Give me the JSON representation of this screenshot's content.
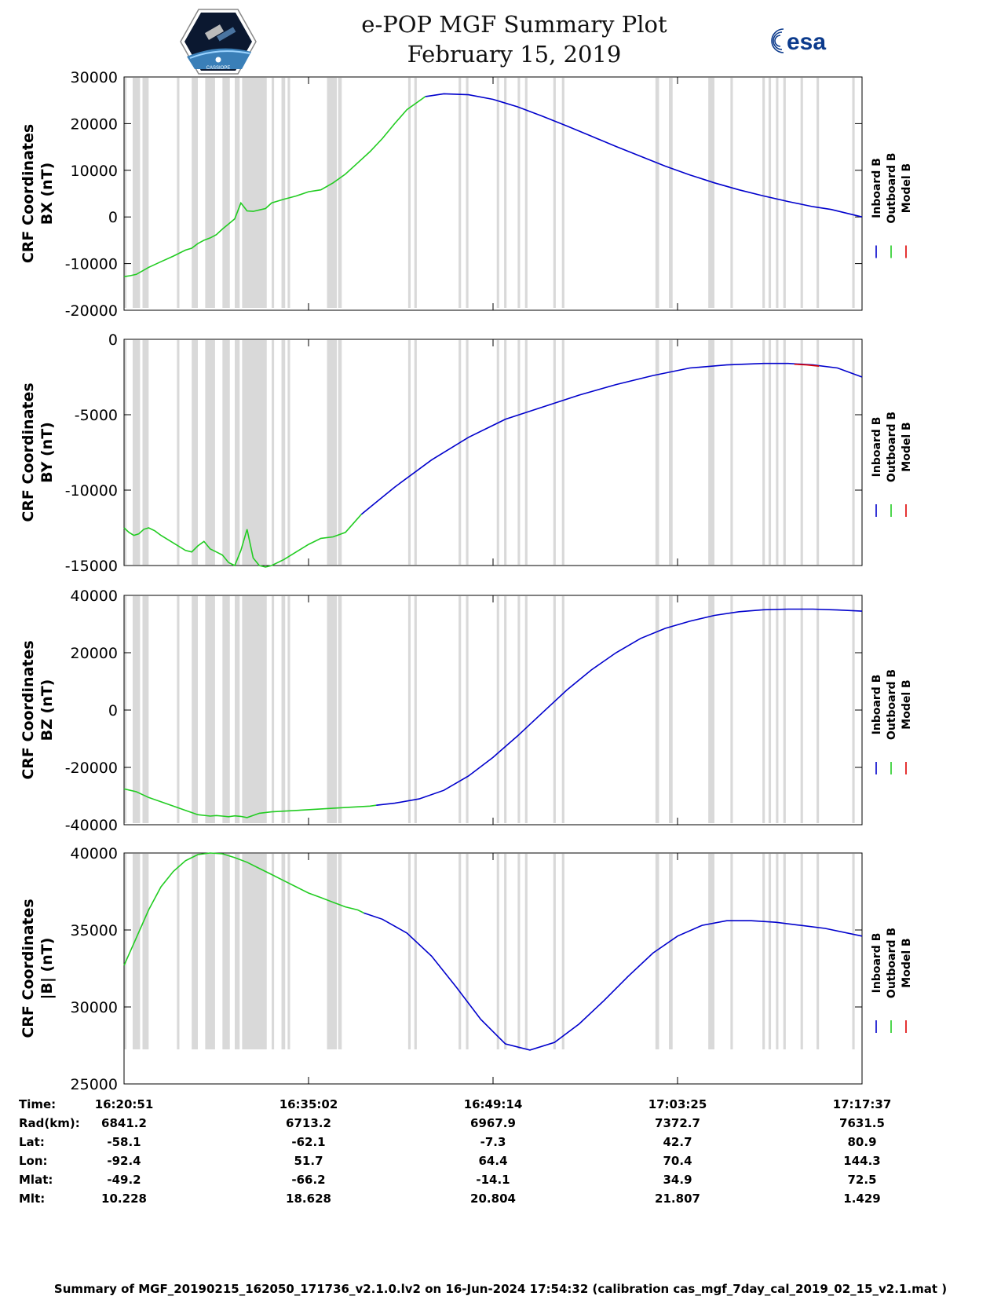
{
  "header": {
    "title": "e-POP MGF Summary Plot",
    "date": "February 15, 2019",
    "left_logo": "cassiope-satellite-logo",
    "left_logo_caption": "CASSIOPE",
    "right_logo": "esa-logo",
    "right_logo_text": "esa"
  },
  "legend": {
    "inboard": "Inboard B",
    "outboard": "Outboard B",
    "model": "Model B"
  },
  "colors": {
    "inboard": "#0000cc",
    "outboard": "#22cc22",
    "model": "#dd0000",
    "gap": "#d9d9d9",
    "axis": "#000000"
  },
  "chart_data": [
    {
      "type": "line",
      "ylabel_line1": "CRF Coordinates",
      "ylabel_line2": "BX (nT)",
      "ylim": [
        -20000,
        30000
      ],
      "yticks": [
        -20000,
        -10000,
        0,
        10000,
        20000,
        30000
      ],
      "ytick_labels": [
        "-20000",
        "-10000",
        "0",
        "10000",
        "20000",
        "30000"
      ],
      "series": [
        {
          "name": "Outboard B",
          "x": [
            0,
            0.5,
            1,
            2,
            3,
            4,
            5,
            5.5,
            6,
            6.5,
            7,
            7.5,
            8,
            8.5,
            9,
            9.5,
            10,
            10.5,
            11,
            11.5,
            12,
            13,
            14,
            15,
            16,
            17,
            18,
            19,
            20,
            21,
            22,
            23,
            24.5
          ],
          "y": [
            -12800,
            -12600,
            -12300,
            -10800,
            -9600,
            -8400,
            -7100,
            -6700,
            -5700,
            -5000,
            -4500,
            -3800,
            -2600,
            -1500,
            -400,
            3000,
            1300,
            1200,
            1500,
            1800,
            3000,
            3800,
            4500,
            5400,
            5800,
            7300,
            9200,
            11600,
            14000,
            16800,
            20000,
            23000,
            25800
          ]
        },
        {
          "name": "Inboard B",
          "x": [
            24.5,
            26,
            28,
            30,
            32,
            34,
            36,
            38,
            40,
            42,
            44,
            46,
            48,
            50,
            52,
            54,
            56,
            57.5,
            60
          ],
          "y": [
            25800,
            26400,
            26200,
            25200,
            23600,
            21600,
            19500,
            17300,
            15100,
            13000,
            10900,
            9000,
            7300,
            5800,
            4500,
            3300,
            2200,
            1600,
            0
          ]
        }
      ]
    },
    {
      "type": "line",
      "ylabel_line1": "CRF Coordinates",
      "ylabel_line2": "BY (nT)",
      "ylim": [
        -15000,
        0
      ],
      "yticks": [
        -15000,
        -10000,
        -5000,
        0
      ],
      "ytick_labels": [
        "-15000",
        "-10000",
        "-5000",
        "0"
      ],
      "series": [
        {
          "name": "Outboard B",
          "x": [
            0,
            0.4,
            0.8,
            1.2,
            1.6,
            2,
            2.5,
            3,
            4,
            5,
            5.5,
            6,
            6.5,
            7,
            7.5,
            8,
            8.5,
            9,
            9.5,
            10,
            10.5,
            11,
            11.5,
            12,
            13,
            14,
            15,
            16,
            17,
            18,
            19.3
          ],
          "y": [
            -12500,
            -12800,
            -13000,
            -12900,
            -12600,
            -12500,
            -12700,
            -13000,
            -13500,
            -14000,
            -14100,
            -13700,
            -13400,
            -13900,
            -14100,
            -14300,
            -14800,
            -15000,
            -14000,
            -12600,
            -14500,
            -15000,
            -15100,
            -15000,
            -14600,
            -14100,
            -13600,
            -13200,
            -13100,
            -12800,
            -11600
          ]
        },
        {
          "name": "Inboard B",
          "x": [
            19.3,
            22,
            25,
            28,
            31,
            34,
            37,
            40,
            43,
            46,
            49,
            52,
            54,
            56,
            58,
            60
          ],
          "y": [
            -11600,
            -9800,
            -8000,
            -6500,
            -5300,
            -4500,
            -3700,
            -3000,
            -2400,
            -1900,
            -1700,
            -1600,
            -1600,
            -1700,
            -1900,
            -2500
          ]
        },
        {
          "name": "Model B",
          "x": [
            54.5,
            55.5,
            56.5
          ],
          "y": [
            -1650,
            -1700,
            -1780
          ]
        }
      ]
    },
    {
      "type": "line",
      "ylabel_line1": "CRF Coordinates",
      "ylabel_line2": "BZ (nT)",
      "ylim": [
        -40000,
        40000
      ],
      "yticks": [
        -40000,
        -20000,
        0,
        20000,
        40000
      ],
      "ytick_labels": [
        "-40000",
        "-20000",
        "0",
        "20000",
        "40000"
      ],
      "series": [
        {
          "name": "Outboard B",
          "x": [
            0,
            0.5,
            1,
            2,
            3,
            4,
            5,
            6,
            7,
            7.5,
            8,
            8.5,
            9,
            9.5,
            10,
            11,
            12,
            14,
            16,
            18,
            20,
            20.5
          ],
          "y": [
            -27500,
            -28000,
            -28500,
            -30500,
            -32000,
            -33500,
            -35000,
            -36500,
            -37000,
            -36800,
            -37000,
            -37200,
            -36900,
            -37100,
            -37500,
            -36000,
            -35500,
            -35000,
            -34500,
            -34000,
            -33500,
            -33200
          ]
        },
        {
          "name": "Inboard B",
          "x": [
            20.5,
            22,
            24,
            26,
            28,
            30,
            32,
            34,
            36,
            38,
            40,
            42,
            44,
            46,
            48,
            50,
            52,
            54,
            56,
            58,
            60
          ],
          "y": [
            -33200,
            -32500,
            -31000,
            -28000,
            -23000,
            -16500,
            -9000,
            -1000,
            7000,
            14000,
            20000,
            25000,
            28500,
            31000,
            33000,
            34300,
            35000,
            35200,
            35200,
            34900,
            34500
          ]
        }
      ]
    },
    {
      "type": "line",
      "ylabel_line1": "CRF Coordinates",
      "ylabel_line2": "|B| (nT)",
      "ylim": [
        25000,
        40000
      ],
      "yticks": [
        25000,
        30000,
        35000,
        40000
      ],
      "ytick_labels": [
        "25000",
        "30000",
        "35000",
        "40000"
      ],
      "series": [
        {
          "name": "Outboard B",
          "x": [
            0,
            1,
            2,
            3,
            4,
            5,
            6,
            7,
            8,
            9,
            10,
            11,
            12,
            13,
            14,
            15,
            16,
            17,
            18,
            19,
            19.5
          ],
          "y": [
            32700,
            34500,
            36300,
            37800,
            38800,
            39500,
            39900,
            40000,
            39950,
            39700,
            39400,
            39000,
            38600,
            38200,
            37800,
            37400,
            37100,
            36800,
            36500,
            36300,
            36100
          ]
        },
        {
          "name": "Inboard B",
          "x": [
            19.5,
            21,
            23,
            25,
            27,
            29,
            31,
            33,
            35,
            37,
            39,
            41,
            43,
            45,
            47,
            49,
            51,
            53,
            55,
            57,
            60
          ],
          "y": [
            36100,
            35700,
            34800,
            33300,
            31300,
            29200,
            27600,
            27200,
            27700,
            28900,
            30400,
            32000,
            33500,
            34600,
            35300,
            35600,
            35600,
            35500,
            35300,
            35100,
            34600
          ]
        }
      ]
    }
  ],
  "gap_intervals": [
    [
      0,
      0.2
    ],
    [
      0.7,
      1.3
    ],
    [
      1.5,
      2.0
    ],
    [
      4.3,
      4.5
    ],
    [
      5.5,
      6.0
    ],
    [
      6.6,
      7.4
    ],
    [
      8.0,
      8.6
    ],
    [
      9.0,
      9.4
    ],
    [
      9.6,
      11.6
    ],
    [
      12.0,
      12.2
    ],
    [
      12.8,
      13.1
    ],
    [
      13.3,
      13.5
    ],
    [
      16.5,
      17.3
    ],
    [
      17.4,
      17.7
    ],
    [
      23.1,
      23.3
    ],
    [
      23.6,
      23.8
    ],
    [
      27.2,
      27.4
    ],
    [
      27.8,
      28.0
    ],
    [
      30.3,
      30.5
    ],
    [
      30.9,
      31.1
    ],
    [
      32.0,
      32.2
    ],
    [
      32.6,
      32.8
    ],
    [
      34.9,
      35.1
    ],
    [
      35.6,
      35.8
    ],
    [
      43.2,
      43.5
    ],
    [
      44.3,
      44.6
    ],
    [
      47.5,
      48.0
    ],
    [
      49.3,
      49.5
    ],
    [
      51.9,
      52.1
    ],
    [
      52.4,
      52.6
    ],
    [
      53.0,
      53.2
    ],
    [
      53.6,
      53.8
    ],
    [
      55.0,
      55.2
    ],
    [
      56.3,
      56.5
    ],
    [
      59.2,
      59.4
    ]
  ],
  "time_axis": {
    "xlim": [
      0,
      60
    ],
    "tick_positions": [
      0,
      15,
      30,
      45,
      60
    ],
    "row_labels": [
      "Time:",
      "Rad(km):",
      "Lat:",
      "Lon:",
      "Mlat:",
      "Mlt:"
    ],
    "columns": [
      [
        "16:20:51",
        "6841.2",
        "-58.1",
        "-92.4",
        "-49.2",
        "10.228"
      ],
      [
        "16:35:02",
        "6713.2",
        "-62.1",
        "51.7",
        "-66.2",
        "18.628"
      ],
      [
        "16:49:14",
        "6967.9",
        "-7.3",
        "64.4",
        "-14.1",
        "20.804"
      ],
      [
        "17:03:25",
        "7372.7",
        "42.7",
        "70.4",
        "34.9",
        "21.807"
      ],
      [
        "17:17:37",
        "7631.5",
        "80.9",
        "144.3",
        "72.5",
        "1.429"
      ]
    ]
  },
  "footer": "Summary of MGF_20190215_162050_171736_v2.1.0.lv2 on 16-Jun-2024 17:54:32 (calibration cas_mgf_7day_cal_2019_02_15_v2.1.mat )"
}
